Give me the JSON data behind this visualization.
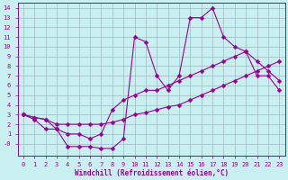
{
  "bg_color": "#c8f0f0",
  "grid_color": "#a0b8c0",
  "line_color": "#990099",
  "marker_color": "#990099",
  "xlabel": "Windchill (Refroidissement éolien,°C)",
  "xlim": [
    -0.5,
    23.5
  ],
  "ylim": [
    -1.2,
    14.5
  ],
  "xticks": [
    0,
    1,
    2,
    3,
    4,
    5,
    6,
    7,
    8,
    9,
    10,
    11,
    12,
    13,
    14,
    15,
    16,
    17,
    18,
    19,
    20,
    21,
    22,
    23
  ],
  "yticks": [
    0,
    1,
    2,
    3,
    4,
    5,
    6,
    7,
    8,
    9,
    10,
    11,
    12,
    13,
    14
  ],
  "ytick_labels": [
    "-0",
    "1",
    "2",
    "3",
    "4",
    "5",
    "6",
    "7",
    "8",
    "9",
    "10",
    "11",
    "12",
    "13",
    "14"
  ],
  "series1_x": [
    0,
    1,
    2,
    3,
    4,
    5,
    6,
    7,
    8,
    9,
    10,
    11,
    12,
    13,
    14,
    15,
    16,
    17,
    18,
    19,
    20,
    21,
    22,
    23
  ],
  "series1_y": [
    3.0,
    2.7,
    2.5,
    2.0,
    2.0,
    2.0,
    2.0,
    2.0,
    2.2,
    2.5,
    3.0,
    3.2,
    3.5,
    3.8,
    4.0,
    4.5,
    5.0,
    5.5,
    6.0,
    6.5,
    7.0,
    7.5,
    8.0,
    8.5
  ],
  "series2_x": [
    0,
    1,
    2,
    3,
    4,
    5,
    6,
    7,
    8,
    9,
    10,
    11,
    12,
    13,
    14,
    15,
    16,
    17,
    18,
    19,
    20,
    21,
    22,
    23
  ],
  "series2_y": [
    3.0,
    2.7,
    2.5,
    1.5,
    1.0,
    1.0,
    0.5,
    1.0,
    3.5,
    4.5,
    5.0,
    5.5,
    5.5,
    6.0,
    6.5,
    7.0,
    7.5,
    8.0,
    8.5,
    9.0,
    9.5,
    8.5,
    7.5,
    6.5
  ],
  "series3_x": [
    0,
    1,
    2,
    3,
    4,
    5,
    6,
    7,
    8,
    9,
    10,
    11,
    12,
    13,
    14,
    15,
    16,
    17,
    18,
    19,
    20,
    21,
    22,
    23
  ],
  "series3_y": [
    3.0,
    2.5,
    1.5,
    1.5,
    -0.3,
    -0.3,
    -0.3,
    -0.5,
    -0.5,
    0.5,
    11.0,
    10.5,
    7.0,
    5.5,
    7.0,
    13.0,
    13.0,
    14.0,
    11.0,
    10.0,
    9.5,
    7.0,
    7.0,
    5.5
  ],
  "font_family": "monospace"
}
